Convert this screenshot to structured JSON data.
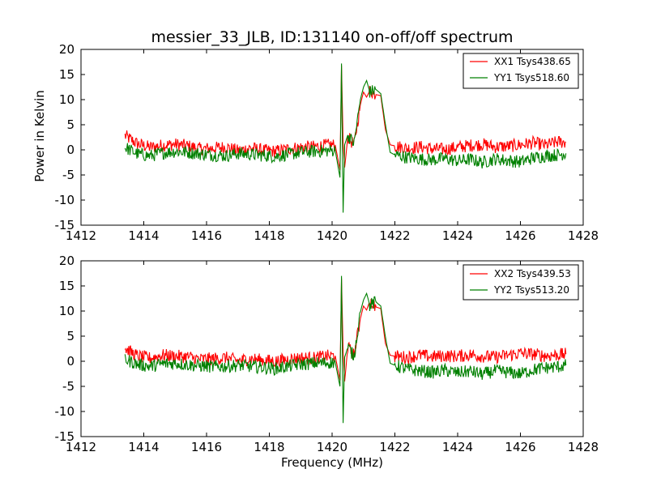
{
  "chart_data": [
    {
      "type": "line",
      "title": "messier_33_JLB, ID:131140 on-off/off spectrum",
      "xlabel": "",
      "ylabel": "Power in Kelvin",
      "xlim": [
        1412,
        1428
      ],
      "ylim": [
        -15,
        20
      ],
      "xticks": [
        1412,
        1414,
        1416,
        1418,
        1420,
        1422,
        1424,
        1426,
        1428
      ],
      "yticks": [
        -15,
        -10,
        -5,
        0,
        5,
        10,
        15,
        20
      ],
      "legend_position": "top-right",
      "x": [
        1413.4,
        1413.8,
        1414.2,
        1414.6,
        1415.0,
        1415.4,
        1415.8,
        1416.2,
        1416.6,
        1417.0,
        1417.4,
        1417.8,
        1418.2,
        1418.6,
        1419.0,
        1419.4,
        1419.8,
        1420.1,
        1420.25,
        1420.3,
        1420.35,
        1420.4,
        1420.5,
        1420.7,
        1420.9,
        1421.0,
        1421.1,
        1421.2,
        1421.4,
        1421.55,
        1421.7,
        1421.85,
        1422.0,
        1422.4,
        1422.8,
        1423.2,
        1423.6,
        1424.0,
        1424.4,
        1424.8,
        1425.2,
        1425.6,
        1426.0,
        1426.4,
        1426.8,
        1427.2,
        1427.45
      ],
      "series": [
        {
          "name": "XX1 Tsys438.65",
          "color": "#ff0000",
          "values": [
            2.8,
            1.2,
            0.5,
            0.9,
            1.1,
            0.8,
            0.2,
            0.3,
            0.6,
            -0.2,
            0.4,
            -0.1,
            -0.3,
            0.2,
            0.5,
            0.6,
            0.9,
            1.0,
            -4.0,
            16.8,
            1.5,
            -3.5,
            2.5,
            1.0,
            9.0,
            11.5,
            10.5,
            11.8,
            11.0,
            10.8,
            4.0,
            1.0,
            0.8,
            0.3,
            0.6,
            0.2,
            0.1,
            0.5,
            0.9,
            1.1,
            0.6,
            0.7,
            1.0,
            1.4,
            0.9,
            1.6,
            1.5
          ]
        },
        {
          "name": "YY1 Tsys518.60",
          "color": "#008000",
          "values": [
            0.5,
            -0.8,
            -1.2,
            -0.6,
            -0.3,
            -0.5,
            -0.8,
            -1.0,
            -1.2,
            -0.7,
            -0.9,
            -1.1,
            -1.3,
            -0.9,
            -0.5,
            -0.3,
            -0.2,
            -0.1,
            -5.5,
            17.2,
            -12.5,
            1.0,
            3.0,
            1.2,
            10.0,
            12.5,
            13.8,
            11.5,
            12.0,
            11.2,
            5.0,
            -0.5,
            -1.0,
            -1.5,
            -1.8,
            -2.0,
            -1.7,
            -2.2,
            -1.9,
            -2.5,
            -1.8,
            -2.1,
            -2.4,
            -1.6,
            -1.2,
            -1.0,
            -0.7
          ]
        }
      ]
    },
    {
      "type": "line",
      "title": "",
      "xlabel": "Frequency (MHz)",
      "ylabel": "",
      "xlim": [
        1412,
        1428
      ],
      "ylim": [
        -15,
        20
      ],
      "xticks": [
        1412,
        1414,
        1416,
        1418,
        1420,
        1422,
        1424,
        1426,
        1428
      ],
      "yticks": [
        -15,
        -10,
        -5,
        0,
        5,
        10,
        15,
        20
      ],
      "legend_position": "top-right",
      "x": [
        1413.4,
        1413.8,
        1414.2,
        1414.6,
        1415.0,
        1415.4,
        1415.8,
        1416.2,
        1416.6,
        1417.0,
        1417.4,
        1417.8,
        1418.2,
        1418.6,
        1419.0,
        1419.4,
        1419.8,
        1420.1,
        1420.25,
        1420.3,
        1420.35,
        1420.4,
        1420.5,
        1420.7,
        1420.9,
        1421.0,
        1421.1,
        1421.2,
        1421.4,
        1421.55,
        1421.7,
        1421.85,
        1422.0,
        1422.4,
        1422.8,
        1423.2,
        1423.6,
        1424.0,
        1424.4,
        1424.8,
        1425.2,
        1425.6,
        1426.0,
        1426.4,
        1426.8,
        1427.2,
        1427.45
      ],
      "series": [
        {
          "name": "XX2 Tsys439.53",
          "color": "#ff0000",
          "values": [
            2.6,
            1.0,
            0.6,
            1.2,
            1.0,
            0.9,
            0.4,
            0.5,
            0.7,
            0.1,
            0.5,
            0.2,
            0.0,
            0.4,
            0.7,
            0.6,
            1.0,
            1.1,
            -3.8,
            16.5,
            2.0,
            -4.0,
            2.8,
            1.2,
            8.5,
            11.0,
            10.2,
            12.0,
            10.8,
            10.5,
            3.5,
            1.2,
            1.0,
            0.8,
            1.2,
            0.9,
            1.1,
            1.0,
            1.3,
            1.0,
            0.8,
            1.2,
            1.6,
            1.4,
            1.1,
            1.3,
            1.4
          ]
        },
        {
          "name": "YY2 Tsys513.20",
          "color": "#008000",
          "values": [
            0.4,
            -0.6,
            -1.0,
            -0.5,
            -0.4,
            -0.7,
            -0.9,
            -1.1,
            -1.0,
            -0.8,
            -1.0,
            -1.2,
            -1.5,
            -1.0,
            -0.6,
            -0.4,
            -0.3,
            -0.2,
            -5.0,
            17.0,
            -12.3,
            0.8,
            2.8,
            1.0,
            9.8,
            12.2,
            13.5,
            11.2,
            11.8,
            11.0,
            4.8,
            -0.4,
            -0.8,
            -1.6,
            -1.9,
            -2.2,
            -1.8,
            -2.3,
            -2.0,
            -2.6,
            -1.9,
            -2.2,
            -2.5,
            -1.7,
            -1.3,
            -1.1,
            -0.8
          ]
        }
      ]
    }
  ]
}
